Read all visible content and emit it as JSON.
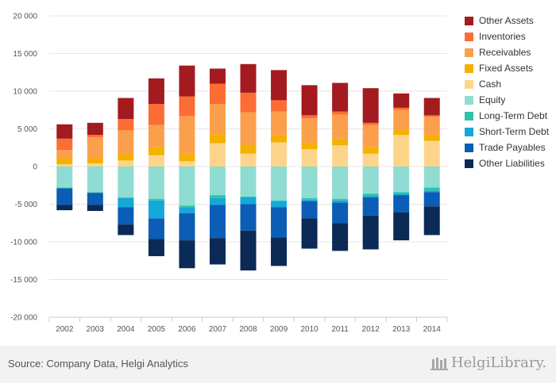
{
  "chart_data": {
    "type": "bar",
    "stacked": true,
    "title": "",
    "xlabel": "",
    "ylabel": "",
    "ylim": [
      -20000,
      20000
    ],
    "yticks": [
      20000,
      15000,
      10000,
      5000,
      0,
      -5000,
      -10000,
      -15000,
      -20000
    ],
    "ytick_labels": [
      "20 000",
      "15 000",
      "10 000",
      "5 000",
      "0",
      "-5 000",
      "-10 000",
      "-15 000",
      "-20 000"
    ],
    "grid": true,
    "legend_position": "right",
    "categories": [
      "2002",
      "2003",
      "2004",
      "2005",
      "2006",
      "2007",
      "2008",
      "2009",
      "2010",
      "2011",
      "2012",
      "2013",
      "2014"
    ],
    "series": [
      {
        "name": "Cash",
        "side": "asset",
        "color": "#fdd58a",
        "values": [
          300,
          400,
          800,
          1500,
          700,
          3100,
          1700,
          3200,
          2300,
          2800,
          1700,
          4200,
          3400
        ]
      },
      {
        "name": "Fixed Assets",
        "side": "asset",
        "color": "#f5b100",
        "values": [
          800,
          700,
          1000,
          1100,
          1000,
          1200,
          1200,
          1000,
          900,
          900,
          900,
          700,
          800
        ]
      },
      {
        "name": "Receivables",
        "side": "asset",
        "color": "#fc9f4d",
        "values": [
          1100,
          2800,
          3000,
          2900,
          5000,
          4000,
          4300,
          3100,
          3200,
          3200,
          2900,
          2600,
          2400
        ]
      },
      {
        "name": "Inventories",
        "side": "asset",
        "color": "#fc6d34",
        "values": [
          1500,
          300,
          1500,
          2800,
          2600,
          2700,
          2600,
          1500,
          400,
          400,
          300,
          300,
          200
        ]
      },
      {
        "name": "Other Assets",
        "side": "asset",
        "color": "#a31b1f",
        "values": [
          1900,
          1600,
          2800,
          3400,
          4100,
          2000,
          3800,
          4000,
          4000,
          3800,
          4600,
          1900,
          2300
        ]
      },
      {
        "name": "Equity",
        "side": "liability",
        "color": "#8fdcd2",
        "values": [
          2800,
          3400,
          4100,
          4300,
          5200,
          3800,
          4000,
          4500,
          4200,
          4300,
          3600,
          3400,
          2800
        ]
      },
      {
        "name": "Long-Term Debt",
        "side": "liability",
        "color": "#2ec4a8",
        "values": [
          100,
          100,
          100,
          200,
          200,
          400,
          100,
          100,
          200,
          200,
          300,
          200,
          400
        ]
      },
      {
        "name": "Short-Term Debt",
        "side": "liability",
        "color": "#15a8d8",
        "values": [
          0,
          0,
          1200,
          2400,
          800,
          900,
          900,
          800,
          200,
          300,
          200,
          200,
          200
        ]
      },
      {
        "name": "Trade Payables",
        "side": "liability",
        "color": "#0b5db5",
        "values": [
          2200,
          1600,
          2300,
          2700,
          3600,
          4400,
          3500,
          4000,
          2300,
          2700,
          2400,
          2300,
          1900
        ]
      },
      {
        "name": "Other Liabilities",
        "side": "liability",
        "color": "#0b2a55",
        "values": [
          700,
          800,
          1400,
          2300,
          3700,
          3500,
          5300,
          3800,
          4000,
          3700,
          4500,
          3700,
          3800
        ]
      }
    ],
    "legend_order": [
      "Other Assets",
      "Inventories",
      "Receivables",
      "Fixed Assets",
      "Cash",
      "Equity",
      "Long-Term Debt",
      "Short-Term Debt",
      "Trade Payables",
      "Other Liabilities"
    ]
  },
  "footer": {
    "source": "Source: Company Data, Helgi Analytics",
    "logo_text": "HelgiLibrary."
  }
}
